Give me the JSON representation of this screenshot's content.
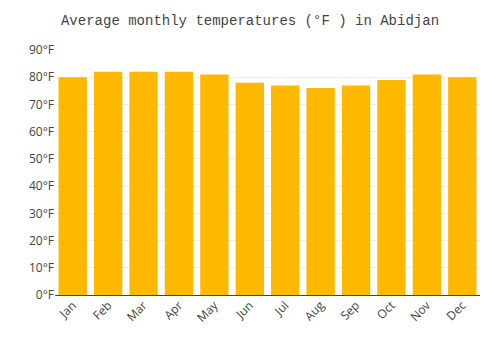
{
  "chart_data": {
    "type": "bar",
    "title": "Average monthly temperatures (°F ) in Abidjan",
    "categories": [
      "Jan",
      "Feb",
      "Mar",
      "Apr",
      "May",
      "Jun",
      "Jul",
      "Aug",
      "Sep",
      "Oct",
      "Nov",
      "Dec"
    ],
    "values": [
      80,
      82,
      82,
      82,
      81,
      78,
      77,
      76,
      77,
      79,
      81,
      80
    ],
    "color": "#FFB800",
    "ylim": [
      0,
      90
    ],
    "yticks": [
      {
        "value": 0,
        "label": "0°F"
      },
      {
        "value": 10,
        "label": "10°F"
      },
      {
        "value": 20,
        "label": "20°F"
      },
      {
        "value": 30,
        "label": "30°F"
      },
      {
        "value": 40,
        "label": "40°F"
      },
      {
        "value": 50,
        "label": "50°F"
      },
      {
        "value": 60,
        "label": "60°F"
      },
      {
        "value": 70,
        "label": "70°F"
      },
      {
        "value": 80,
        "label": "80°F"
      },
      {
        "value": 90,
        "label": "90°F"
      }
    ],
    "grid": true
  }
}
